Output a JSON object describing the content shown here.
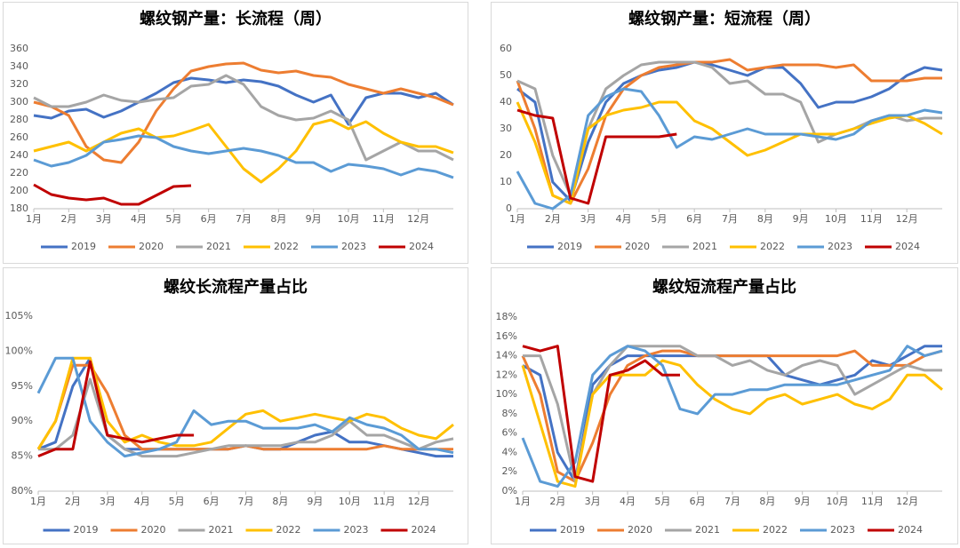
{
  "chart_data": [
    {
      "type": "line",
      "title": "螺纹钢产量：长流程（周）",
      "x": [
        1,
        1.5,
        2,
        2.5,
        3,
        3.5,
        4,
        4.5,
        5,
        5.5,
        6,
        6.5,
        7,
        7.5,
        8,
        8.5,
        9,
        9.5,
        10,
        10.5,
        11,
        11.5,
        12,
        12.5,
        13
      ],
      "xlim": [
        1,
        13
      ],
      "xticks": [
        {
          "value": 1,
          "label": "1月"
        },
        {
          "value": 2,
          "label": "2月"
        },
        {
          "value": 3,
          "label": "3月"
        },
        {
          "value": 4,
          "label": "4月"
        },
        {
          "value": 5,
          "label": "5月"
        },
        {
          "value": 6,
          "label": "6月"
        },
        {
          "value": 7,
          "label": "7月"
        },
        {
          "value": 8,
          "label": "8月"
        },
        {
          "value": 9,
          "label": "9月"
        },
        {
          "value": 10,
          "label": "10月"
        },
        {
          "value": 11,
          "label": "11月"
        },
        {
          "value": 12,
          "label": "12月"
        }
      ],
      "ylim": [
        180,
        360
      ],
      "yticks": [
        180,
        200,
        220,
        240,
        260,
        280,
        300,
        320,
        340,
        360
      ],
      "grid": false,
      "series": [
        {
          "name": "2019",
          "color": "#4472c4",
          "values": [
            285,
            282,
            290,
            292,
            283,
            290,
            300,
            310,
            322,
            327,
            325,
            322,
            325,
            323,
            318,
            308,
            300,
            308,
            275,
            305,
            310,
            310,
            305,
            310,
            297
          ]
        },
        {
          "name": "2020",
          "color": "#ed7d31",
          "values": [
            300,
            295,
            285,
            250,
            235,
            232,
            255,
            290,
            315,
            335,
            340,
            343,
            344,
            336,
            333,
            335,
            330,
            328,
            320,
            315,
            310,
            315,
            310,
            305,
            297
          ]
        },
        {
          "name": "2021",
          "color": "#a5a5a5",
          "values": [
            305,
            295,
            295,
            300,
            308,
            302,
            300,
            303,
            305,
            318,
            320,
            330,
            320,
            295,
            285,
            280,
            282,
            290,
            280,
            235,
            245,
            255,
            245,
            245,
            235
          ]
        },
        {
          "name": "2022",
          "color": "#ffc000",
          "values": [
            245,
            250,
            255,
            245,
            255,
            265,
            270,
            260,
            262,
            268,
            275,
            250,
            225,
            210,
            225,
            245,
            275,
            280,
            270,
            278,
            265,
            255,
            250,
            250,
            243
          ]
        },
        {
          "name": "2023",
          "color": "#5b9bd5",
          "values": [
            235,
            228,
            232,
            240,
            255,
            258,
            262,
            260,
            250,
            245,
            242,
            245,
            248,
            245,
            240,
            232,
            232,
            222,
            230,
            228,
            225,
            218,
            225,
            222,
            215
          ]
        },
        {
          "name": "2024",
          "color": "#c00000",
          "values": [
            207,
            196,
            192,
            190,
            192,
            185,
            185,
            195,
            205,
            206,
            null,
            null,
            null,
            null,
            null,
            null,
            null,
            null,
            null,
            null,
            null,
            null,
            null,
            null,
            null
          ]
        }
      ]
    },
    {
      "type": "line",
      "title": "螺纹钢产量：短流程（周）",
      "x": [
        1,
        1.5,
        2,
        2.5,
        3,
        3.5,
        4,
        4.5,
        5,
        5.5,
        6,
        6.5,
        7,
        7.5,
        8,
        8.5,
        9,
        9.5,
        10,
        10.5,
        11,
        11.5,
        12,
        12.5,
        13
      ],
      "xlim": [
        1,
        13
      ],
      "xticks": [
        {
          "value": 1,
          "label": "1月"
        },
        {
          "value": 2,
          "label": "2月"
        },
        {
          "value": 3,
          "label": "3月"
        },
        {
          "value": 4,
          "label": "4月"
        },
        {
          "value": 5,
          "label": "5月"
        },
        {
          "value": 6,
          "label": "6月"
        },
        {
          "value": 7,
          "label": "7月"
        },
        {
          "value": 8,
          "label": "8月"
        },
        {
          "value": 9,
          "label": "9月"
        },
        {
          "value": 10,
          "label": "10月"
        },
        {
          "value": 11,
          "label": "11月"
        },
        {
          "value": 12,
          "label": "12月"
        }
      ],
      "ylim": [
        0,
        60
      ],
      "yticks": [
        0,
        10,
        20,
        30,
        40,
        50,
        60
      ],
      "grid": false,
      "series": [
        {
          "name": "2019",
          "color": "#4472c4",
          "values": [
            45,
            40,
            10,
            3,
            25,
            40,
            47,
            50,
            52,
            53,
            55,
            54,
            52,
            50,
            53,
            53,
            47,
            38,
            40,
            40,
            42,
            45,
            50,
            53,
            52
          ]
        },
        {
          "name": "2020",
          "color": "#ed7d31",
          "values": [
            48,
            30,
            5,
            2,
            15,
            35,
            45,
            50,
            53,
            54,
            55,
            55,
            56,
            52,
            53,
            54,
            54,
            54,
            53,
            54,
            48,
            48,
            48,
            49,
            49
          ]
        },
        {
          "name": "2021",
          "color": "#a5a5a5",
          "values": [
            48,
            45,
            20,
            5,
            30,
            45,
            50,
            54,
            55,
            55,
            55,
            53,
            47,
            48,
            43,
            43,
            40,
            25,
            28,
            30,
            33,
            35,
            33,
            34,
            34
          ]
        },
        {
          "name": "2022",
          "color": "#ffc000",
          "values": [
            40,
            25,
            5,
            2,
            30,
            35,
            37,
            38,
            40,
            40,
            33,
            30,
            25,
            20,
            22,
            25,
            28,
            28,
            28,
            30,
            32,
            34,
            35,
            32,
            28
          ]
        },
        {
          "name": "2023",
          "color": "#5b9bd5",
          "values": [
            14,
            2,
            0,
            5,
            35,
            42,
            45,
            44,
            35,
            23,
            27,
            26,
            28,
            30,
            28,
            28,
            28,
            27,
            26,
            28,
            33,
            35,
            35,
            37,
            36
          ]
        },
        {
          "name": "2024",
          "color": "#c00000",
          "values": [
            37,
            35,
            34,
            4,
            2,
            27,
            27,
            27,
            27,
            28,
            null,
            null,
            null,
            null,
            null,
            null,
            null,
            null,
            null,
            null,
            null,
            null,
            null,
            null,
            null
          ]
        }
      ]
    },
    {
      "type": "line",
      "title": "螺纹长流程产量占比",
      "x": [
        1,
        1.5,
        2,
        2.5,
        3,
        3.5,
        4,
        4.5,
        5,
        5.5,
        6,
        6.5,
        7,
        7.5,
        8,
        8.5,
        9,
        9.5,
        10,
        10.5,
        11,
        11.5,
        12,
        12.5,
        13
      ],
      "xlim": [
        1,
        13
      ],
      "xticks": [
        {
          "value": 1,
          "label": "1月"
        },
        {
          "value": 2,
          "label": "2月"
        },
        {
          "value": 3,
          "label": "3月"
        },
        {
          "value": 4,
          "label": "4月"
        },
        {
          "value": 5,
          "label": "5月"
        },
        {
          "value": 6,
          "label": "6月"
        },
        {
          "value": 7,
          "label": "7月"
        },
        {
          "value": 8,
          "label": "8月"
        },
        {
          "value": 9,
          "label": "9月"
        },
        {
          "value": 10,
          "label": "10月"
        },
        {
          "value": 11,
          "label": "11月"
        },
        {
          "value": 12,
          "label": "12月"
        }
      ],
      "ylim": [
        80,
        105
      ],
      "yticks": [
        {
          "value": 80,
          "label": "80%"
        },
        {
          "value": 85,
          "label": "85%"
        },
        {
          "value": 90,
          "label": "90%"
        },
        {
          "value": 95,
          "label": "95%"
        },
        {
          "value": 100,
          "label": "100%"
        },
        {
          "value": 105,
          "label": "105%"
        }
      ],
      "grid": false,
      "series": [
        {
          "name": "2019",
          "color": "#4472c4",
          "values": [
            86,
            87,
            95,
            99,
            88,
            86,
            86,
            86,
            86,
            86,
            86,
            86,
            86.5,
            86,
            86,
            87,
            88,
            88.5,
            87,
            87,
            86.5,
            86,
            85.5,
            85,
            85
          ]
        },
        {
          "name": "2020",
          "color": "#ed7d31",
          "values": [
            86,
            90,
            98,
            98,
            94,
            88,
            86,
            86,
            86,
            86,
            86,
            86,
            86.5,
            86,
            86,
            86,
            86,
            86,
            86,
            86,
            86.5,
            86,
            86,
            86,
            86
          ]
        },
        {
          "name": "2021",
          "color": "#a5a5a5",
          "values": [
            86,
            86,
            88,
            96,
            88,
            86,
            85,
            85,
            85,
            85.5,
            86,
            86.5,
            86.5,
            86.5,
            86.5,
            87,
            87,
            88,
            90,
            88,
            88,
            87,
            86,
            87,
            87.5
          ]
        },
        {
          "name": "2022",
          "color": "#ffc000",
          "values": [
            86,
            90,
            99,
            99,
            90,
            87,
            88,
            87,
            86.5,
            86.5,
            87,
            89,
            91,
            91.5,
            90,
            90.5,
            91,
            90.5,
            90,
            91,
            90.5,
            89,
            88,
            87.5,
            89.5
          ]
        },
        {
          "name": "2023",
          "color": "#5b9bd5",
          "values": [
            94,
            99,
            99,
            90,
            87,
            85,
            85.5,
            86,
            87,
            91.5,
            89.5,
            90,
            90,
            89,
            89,
            89,
            89.5,
            88.5,
            90.5,
            89.5,
            89,
            88,
            86,
            86,
            85.5
          ]
        },
        {
          "name": "2024",
          "color": "#c00000",
          "values": [
            85,
            86,
            86,
            98.5,
            88,
            87.5,
            87,
            87.5,
            88,
            88,
            null,
            null,
            null,
            null,
            null,
            null,
            null,
            null,
            null,
            null,
            null,
            null,
            null,
            null,
            null
          ]
        }
      ]
    },
    {
      "type": "line",
      "title": "螺纹短流程产量占比",
      "x": [
        1,
        1.5,
        2,
        2.5,
        3,
        3.5,
        4,
        4.5,
        5,
        5.5,
        6,
        6.5,
        7,
        7.5,
        8,
        8.5,
        9,
        9.5,
        10,
        10.5,
        11,
        11.5,
        12,
        12.5,
        13
      ],
      "xlim": [
        1,
        13
      ],
      "xticks": [
        {
          "value": 1,
          "label": "1月"
        },
        {
          "value": 2,
          "label": "2月"
        },
        {
          "value": 3,
          "label": "3月"
        },
        {
          "value": 4,
          "label": "4月"
        },
        {
          "value": 5,
          "label": "5月"
        },
        {
          "value": 6,
          "label": "6月"
        },
        {
          "value": 7,
          "label": "7月"
        },
        {
          "value": 8,
          "label": "8月"
        },
        {
          "value": 9,
          "label": "9月"
        },
        {
          "value": 10,
          "label": "10月"
        },
        {
          "value": 11,
          "label": "11月"
        },
        {
          "value": 12,
          "label": "12月"
        }
      ],
      "ylim": [
        0,
        18
      ],
      "yticks": [
        {
          "value": 0,
          "label": "0%"
        },
        {
          "value": 2,
          "label": "2%"
        },
        {
          "value": 4,
          "label": "4%"
        },
        {
          "value": 6,
          "label": "6%"
        },
        {
          "value": 8,
          "label": "8%"
        },
        {
          "value": 10,
          "label": "10%"
        },
        {
          "value": 12,
          "label": "12%"
        },
        {
          "value": 14,
          "label": "14%"
        },
        {
          "value": 16,
          "label": "16%"
        },
        {
          "value": 18,
          "label": "18%"
        }
      ],
      "grid": false,
      "series": [
        {
          "name": "2019",
          "color": "#4472c4",
          "values": [
            13,
            12,
            4,
            1,
            11,
            13,
            14,
            14,
            14,
            14,
            14,
            14,
            14,
            14,
            14,
            12,
            11.5,
            11,
            11.5,
            12,
            13.5,
            13,
            14,
            15,
            15
          ]
        },
        {
          "name": "2020",
          "color": "#ed7d31",
          "values": [
            14,
            10,
            2,
            1,
            5,
            10,
            13,
            14,
            14.5,
            14.5,
            14,
            14,
            14,
            14,
            14,
            14,
            14,
            14,
            14,
            14.5,
            13,
            13,
            13,
            14,
            14.5
          ]
        },
        {
          "name": "2021",
          "color": "#a5a5a5",
          "values": [
            14,
            14,
            9,
            1,
            10,
            13,
            15,
            15,
            15,
            15,
            14,
            14,
            13,
            13.5,
            12.5,
            12,
            13,
            13.5,
            13,
            10,
            11,
            12,
            13,
            12.5,
            12.5
          ]
        },
        {
          "name": "2022",
          "color": "#ffc000",
          "values": [
            13,
            7,
            1,
            0.5,
            10,
            12,
            12,
            12,
            13.5,
            13,
            11,
            9.5,
            8.5,
            8,
            9.5,
            10,
            9,
            9.5,
            10,
            9,
            8.5,
            9.5,
            12,
            12,
            10.5
          ]
        },
        {
          "name": "2023",
          "color": "#5b9bd5",
          "values": [
            5.5,
            1,
            0.5,
            3,
            12,
            14,
            15,
            14.5,
            13,
            8.5,
            8,
            10,
            10,
            10.5,
            10.5,
            11,
            11,
            11,
            11,
            11.5,
            12,
            12.5,
            15,
            14,
            14.5
          ]
        },
        {
          "name": "2024",
          "color": "#c00000",
          "values": [
            15,
            14.5,
            15,
            1.5,
            1,
            12,
            12.5,
            13.5,
            12,
            12,
            null,
            null,
            null,
            null,
            null,
            null,
            null,
            null,
            null,
            null,
            null,
            null,
            null,
            null,
            null
          ]
        }
      ]
    }
  ]
}
